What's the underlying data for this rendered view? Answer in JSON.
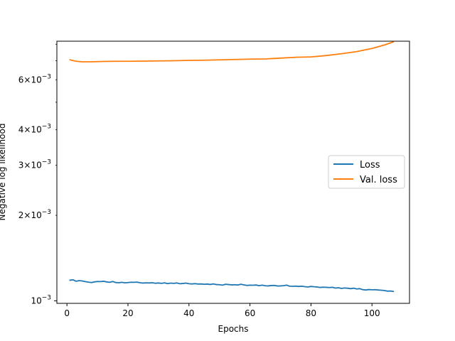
{
  "chart_data": {
    "type": "line",
    "xlabel": "Epochs",
    "ylabel": "Negative log likelihood",
    "yscale": "log",
    "xlim": [
      -3.3,
      112.3
    ],
    "ylim": [
      0.00098,
      0.0082
    ],
    "grid": false,
    "legend_position": "center-right",
    "x_ticks": [
      {
        "value": 0,
        "label": "0"
      },
      {
        "value": 20,
        "label": "20"
      },
      {
        "value": 40,
        "label": "40"
      },
      {
        "value": 60,
        "label": "60"
      },
      {
        "value": 80,
        "label": "80"
      },
      {
        "value": 100,
        "label": "100"
      }
    ],
    "y_major_ticks": [
      {
        "value": 0.001,
        "mantissa": "",
        "exponent": "−3"
      }
    ],
    "y_minor_ticks": [
      {
        "value": 0.002,
        "mantissa": "2",
        "exponent": "−3"
      },
      {
        "value": 0.003,
        "mantissa": "3",
        "exponent": "−3"
      },
      {
        "value": 0.004,
        "mantissa": "4",
        "exponent": "−3"
      },
      {
        "value": 0.005,
        "mantissa": "",
        "exponent": ""
      },
      {
        "value": 0.006,
        "mantissa": "6",
        "exponent": "−3"
      },
      {
        "value": 0.007,
        "mantissa": "",
        "exponent": ""
      },
      {
        "value": 0.008,
        "mantissa": "",
        "exponent": ""
      }
    ],
    "series": [
      {
        "name": "Loss",
        "color": "#1f77b4",
        "x": [
          1,
          2,
          3,
          4,
          5,
          6,
          7,
          8,
          9,
          10,
          11,
          12,
          13,
          14,
          15,
          16,
          17,
          18,
          19,
          20,
          21,
          22,
          23,
          24,
          25,
          26,
          27,
          28,
          29,
          30,
          31,
          32,
          33,
          34,
          35,
          36,
          37,
          38,
          39,
          40,
          41,
          42,
          43,
          44,
          45,
          46,
          47,
          48,
          49,
          50,
          51,
          52,
          53,
          54,
          55,
          56,
          57,
          58,
          59,
          60,
          61,
          62,
          63,
          64,
          65,
          66,
          67,
          68,
          69,
          70,
          71,
          72,
          73,
          74,
          75,
          76,
          77,
          78,
          79,
          80,
          81,
          82,
          83,
          84,
          85,
          86,
          87,
          88,
          89,
          90,
          91,
          92,
          93,
          94,
          95,
          96,
          97,
          98,
          99,
          100,
          101,
          102,
          103,
          104,
          105,
          106,
          107
        ],
        "y": [
          0.001182,
          0.001186,
          0.001172,
          0.001178,
          0.001175,
          0.001169,
          0.001164,
          0.00116,
          0.001166,
          0.00117,
          0.001169,
          0.001172,
          0.001166,
          0.001162,
          0.00117,
          0.00116,
          0.001158,
          0.001162,
          0.001157,
          0.00116,
          0.001163,
          0.001162,
          0.001164,
          0.001158,
          0.001155,
          0.001157,
          0.001156,
          0.001158,
          0.001153,
          0.001156,
          0.001152,
          0.001157,
          0.00115,
          0.001155,
          0.001152,
          0.001156,
          0.001149,
          0.001151,
          0.001155,
          0.001149,
          0.001147,
          0.00115,
          0.001146,
          0.001147,
          0.001144,
          0.001146,
          0.001142,
          0.001147,
          0.001141,
          0.00114,
          0.001136,
          0.001144,
          0.001141,
          0.001138,
          0.00114,
          0.001137,
          0.001144,
          0.001138,
          0.001133,
          0.001136,
          0.001135,
          0.001137,
          0.001131,
          0.001136,
          0.00113,
          0.001129,
          0.001132,
          0.001133,
          0.001128,
          0.001129,
          0.001131,
          0.001136,
          0.001126,
          0.001125,
          0.001127,
          0.001124,
          0.001126,
          0.001122,
          0.001119,
          0.001124,
          0.001121,
          0.001119,
          0.001115,
          0.001117,
          0.001116,
          0.001114,
          0.001116,
          0.001109,
          0.001112,
          0.001106,
          0.00111,
          0.001108,
          0.001104,
          0.001108,
          0.001101,
          0.001104,
          0.001095,
          0.001092,
          0.001096,
          0.001094,
          0.001095,
          0.001092,
          0.00109,
          0.001088,
          0.001082,
          0.001083,
          0.001079
        ]
      },
      {
        "name": "Val. loss",
        "color": "#ff7f0e",
        "x": [
          1,
          3,
          5,
          8,
          12,
          16,
          20,
          25,
          30,
          35,
          40,
          45,
          50,
          55,
          60,
          65,
          70,
          75,
          80,
          85,
          90,
          95,
          100,
          104,
          107
        ],
        "y": [
          0.00705,
          0.00697,
          0.00694,
          0.00694,
          0.00696,
          0.00697,
          0.00697,
          0.00698,
          0.00699,
          0.007,
          0.00702,
          0.00703,
          0.00705,
          0.00707,
          0.00709,
          0.0071,
          0.00715,
          0.0072,
          0.00722,
          0.0073,
          0.00741,
          0.00754,
          0.00773,
          0.00795,
          0.00815
        ]
      }
    ]
  }
}
